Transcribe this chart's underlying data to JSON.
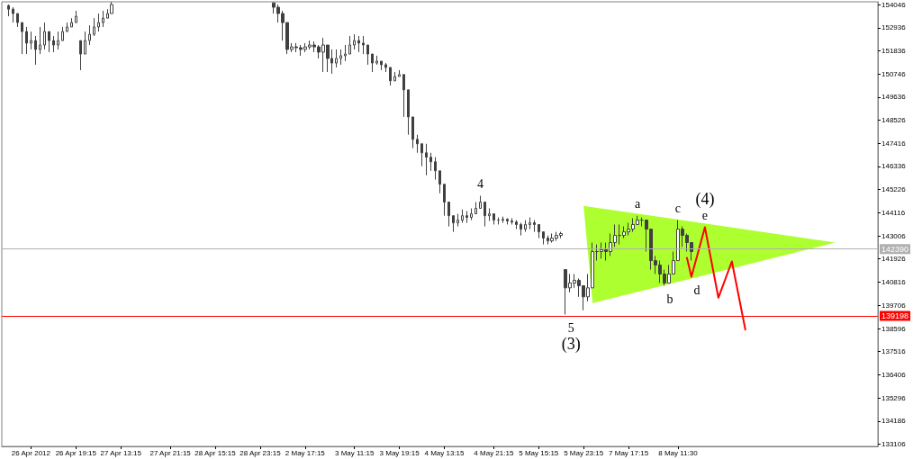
{
  "chart_data": {
    "type": "candlestick",
    "categories": [
      null,
      null,
      null,
      null,
      null,
      null,
      "26 Apr 2012",
      null,
      null,
      null,
      null,
      null,
      null,
      null,
      null,
      null,
      "26 Apr 19:15",
      null,
      null,
      null,
      null,
      null,
      null,
      null,
      null,
      null,
      "27 Apr 13:15",
      null,
      null,
      null,
      null,
      null,
      null,
      null,
      null,
      null,
      null,
      "27 Apr 21:15",
      null,
      null,
      null,
      null,
      null,
      null,
      null,
      null,
      null,
      "28 Apr 15:15",
      null,
      null,
      null,
      null,
      null,
      null,
      null,
      null,
      null,
      "28 Apr 23:15",
      null,
      null,
      null,
      null,
      null,
      null,
      null,
      null,
      null,
      "2 May 17:15",
      null,
      null,
      null,
      null,
      null,
      null,
      null,
      null,
      null,
      null,
      "3 May 11:15",
      null,
      null,
      null,
      null,
      null,
      null,
      null,
      null,
      null,
      "3 May 19:15",
      null,
      null,
      null,
      null,
      null,
      null,
      null,
      null,
      null,
      "4 May 13:15",
      null,
      null,
      null,
      null,
      null,
      null,
      null,
      null,
      null,
      null,
      "4 May 21:15",
      null,
      null,
      null,
      null,
      null,
      null,
      null,
      null,
      null,
      "5 May 15:15",
      null,
      null,
      null,
      null,
      null,
      null,
      null,
      null,
      null,
      "5 May 23:15",
      null,
      null,
      null,
      null,
      null,
      null,
      null,
      null,
      null,
      "7 May 17:15",
      null,
      null,
      null,
      null,
      null,
      null,
      null,
      null,
      null,
      null,
      "8 May 11:30",
      null,
      null,
      null,
      null,
      null,
      null,
      null,
      null,
      null,
      null,
      null,
      null,
      null,
      null,
      null,
      null,
      null,
      null,
      null,
      null,
      null,
      null,
      null,
      null,
      null,
      null,
      null,
      null,
      null,
      null,
      null,
      null,
      null,
      null,
      null,
      null,
      null,
      null,
      null,
      null,
      null,
      null,
      null,
      null
    ],
    "ylim": [
      132980,
      154180
    ],
    "yticks": [
      133106,
      134186,
      135296,
      136406,
      137516,
      138596,
      139706,
      140816,
      141926,
      143006,
      144116,
      145226,
      146336,
      147416,
      148526,
      149636,
      150746,
      151836,
      152936,
      154046
    ],
    "grid": false,
    "series": [
      {
        "color": "#404040",
        "ohlc": [
          null,
          [
            154000,
            154050,
            153490,
            153830
          ],
          [
            153830,
            153920,
            153190,
            153620
          ],
          [
            153620,
            153620,
            152980,
            153190
          ],
          [
            153190,
            153190,
            151690,
            152760
          ],
          [
            152760,
            152980,
            151690,
            152210
          ],
          [
            152210,
            152760,
            151910,
            152330
          ],
          [
            152330,
            152550,
            151180,
            151910
          ],
          [
            151910,
            152980,
            151690,
            152120
          ],
          [
            152120,
            153190,
            151910,
            152760
          ],
          [
            152760,
            152760,
            151780,
            152330
          ],
          [
            152330,
            152550,
            151780,
            152120
          ],
          [
            152120,
            152760,
            151910,
            152330
          ],
          [
            152330,
            152980,
            152330,
            152760
          ],
          [
            152760,
            153190,
            152760,
            152980
          ],
          [
            152980,
            153400,
            152980,
            153190
          ],
          [
            153190,
            153750,
            153190,
            153490
          ],
          [
            152330,
            152330,
            150920,
            151690
          ],
          [
            151690,
            152760,
            151690,
            152330
          ],
          [
            152330,
            153060,
            152120,
            152630
          ],
          [
            152630,
            153400,
            152550,
            152980
          ],
          [
            152980,
            153620,
            152760,
            153190
          ],
          [
            153190,
            153750,
            152980,
            153400
          ],
          [
            153400,
            153830,
            153400,
            153620
          ],
          [
            153620,
            154170,
            153620,
            154050
          ],
          null,
          null,
          null,
          null,
          null,
          null,
          null,
          null,
          null,
          null,
          null,
          null,
          null,
          null,
          null,
          null,
          null,
          null,
          null,
          null,
          null,
          null,
          null,
          null,
          null,
          null,
          null,
          null,
          null,
          null,
          null,
          null,
          null,
          null,
          null,
          [
            154130,
            154130,
            153620,
            153920
          ],
          [
            153920,
            154050,
            153190,
            153620
          ],
          [
            153620,
            153750,
            152330,
            153190
          ],
          [
            153190,
            153190,
            151690,
            151910
          ],
          [
            151910,
            152210,
            151780,
            152030
          ],
          [
            152030,
            152210,
            151780,
            151990
          ],
          [
            151990,
            152120,
            151610,
            151910
          ],
          [
            151910,
            152210,
            151780,
            152030
          ],
          [
            152030,
            152330,
            151910,
            152120
          ],
          [
            152120,
            152290,
            151780,
            152030
          ],
          [
            152030,
            152120,
            151480,
            151780
          ],
          [
            151780,
            152460,
            150830,
            152120
          ],
          [
            152120,
            152120,
            150830,
            151480
          ],
          [
            151480,
            151910,
            150750,
            151260
          ],
          [
            151260,
            151910,
            151050,
            151480
          ],
          [
            151480,
            151910,
            151180,
            151610
          ],
          [
            151610,
            152120,
            151350,
            151690
          ],
          [
            151690,
            152550,
            151690,
            152120
          ],
          [
            152120,
            152630,
            151910,
            152330
          ],
          [
            152330,
            152550,
            151780,
            152210
          ],
          [
            152210,
            152550,
            151690,
            152120
          ],
          [
            152120,
            152120,
            151180,
            151690
          ],
          [
            151690,
            151690,
            150830,
            151260
          ],
          [
            151260,
            151610,
            151180,
            151350
          ],
          [
            151350,
            151350,
            150920,
            151180
          ],
          [
            151180,
            151260,
            150830,
            151050
          ],
          [
            151050,
            151050,
            150190,
            150410
          ],
          [
            150410,
            150830,
            150410,
            150620
          ],
          [
            150620,
            150920,
            150620,
            150710
          ],
          [
            150710,
            150710,
            148690,
            149980
          ],
          [
            149980,
            149980,
            147840,
            148690
          ],
          [
            148690,
            148690,
            147200,
            147620
          ],
          [
            147620,
            147840,
            146980,
            147410
          ],
          [
            147410,
            147410,
            146340,
            146980
          ],
          [
            146980,
            147410,
            145910,
            146770
          ],
          [
            146770,
            146980,
            146120,
            146550
          ],
          [
            146550,
            146770,
            145700,
            146120
          ],
          [
            146120,
            146120,
            145050,
            145480
          ],
          [
            145480,
            145480,
            143980,
            144630
          ],
          [
            144630,
            144630,
            143470,
            143980
          ],
          [
            143980,
            143980,
            143210,
            143640
          ],
          [
            143640,
            144070,
            143470,
            143770
          ],
          [
            143770,
            144280,
            143640,
            143980
          ],
          [
            143980,
            144200,
            143640,
            143900
          ],
          [
            143900,
            144330,
            143770,
            144070
          ],
          [
            144070,
            144630,
            144070,
            144330
          ],
          [
            144330,
            144930,
            144330,
            144630
          ],
          [
            144630,
            144630,
            143470,
            143980
          ],
          [
            143980,
            144330,
            143730,
            144070
          ],
          [
            144070,
            144070,
            143560,
            143770
          ],
          [
            143770,
            143900,
            143560,
            143770
          ],
          [
            143770,
            143940,
            143640,
            143810
          ],
          [
            143810,
            143860,
            143560,
            143730
          ],
          [
            143730,
            143860,
            143560,
            143680
          ],
          [
            143680,
            143770,
            143340,
            143560
          ],
          [
            143560,
            143640,
            143040,
            143340
          ],
          [
            143340,
            143770,
            143210,
            143560
          ],
          [
            143560,
            143900,
            143340,
            143640
          ],
          [
            143640,
            143770,
            143210,
            143560
          ],
          [
            143560,
            143560,
            142910,
            143210
          ],
          [
            143210,
            143210,
            142610,
            142910
          ],
          [
            142910,
            143040,
            142610,
            142780
          ],
          [
            142780,
            143130,
            142700,
            142910
          ],
          [
            142910,
            143210,
            142780,
            143040
          ],
          [
            143040,
            143210,
            142910,
            143130
          ],
          [
            141410,
            141410,
            139270,
            140540
          ],
          [
            140540,
            141200,
            140330,
            140770
          ],
          [
            140770,
            141200,
            140540,
            140900
          ],
          [
            140900,
            140990,
            140110,
            140640
          ],
          [
            140640,
            140640,
            139470,
            140110
          ],
          [
            140110,
            141200,
            139900,
            140540
          ],
          [
            140540,
            142700,
            140540,
            142270
          ],
          [
            142270,
            142610,
            141840,
            142270
          ],
          [
            142270,
            142700,
            141930,
            142360
          ],
          [
            142360,
            142700,
            141840,
            142270
          ],
          [
            142270,
            143130,
            142060,
            142700
          ],
          [
            142700,
            143560,
            142490,
            143040
          ],
          [
            143040,
            143560,
            142610,
            143040
          ],
          [
            143040,
            143470,
            142910,
            143210
          ],
          [
            143210,
            143640,
            143040,
            143340
          ],
          [
            143340,
            143860,
            143210,
            143560
          ],
          [
            143560,
            143980,
            143560,
            143770
          ],
          [
            143770,
            143900,
            143470,
            143770
          ],
          [
            143770,
            143770,
            142270,
            143340
          ],
          [
            143340,
            143340,
            141410,
            141840
          ],
          [
            141840,
            142060,
            141200,
            141630
          ],
          [
            141630,
            141840,
            140770,
            141200
          ],
          [
            141200,
            141410,
            140640,
            140770
          ],
          [
            140770,
            141630,
            140770,
            141200
          ],
          [
            141200,
            142270,
            141200,
            141840
          ],
          [
            141840,
            143770,
            141840,
            143340
          ],
          [
            143340,
            143470,
            142490,
            143040
          ],
          [
            143040,
            143130,
            142270,
            142700
          ],
          [
            142700,
            142700,
            141840,
            142270
          ],
          null,
          null,
          null,
          null,
          null,
          null,
          null,
          null,
          null,
          null,
          null,
          null,
          null,
          null,
          null,
          null,
          null,
          null,
          null,
          null,
          null,
          null,
          null,
          null,
          null,
          null,
          null,
          null,
          null,
          null,
          null,
          null,
          null,
          null,
          null,
          null,
          null,
          null,
          null,
          null,
          null
        ]
      },
      {
        "type": "line",
        "color": "#ff0000",
        "marker": "none",
        "values": [
          null,
          null,
          null,
          null,
          null,
          null,
          null,
          null,
          null,
          null,
          null,
          null,
          null,
          null,
          null,
          null,
          null,
          null,
          null,
          null,
          null,
          null,
          null,
          null,
          null,
          null,
          null,
          null,
          null,
          null,
          null,
          null,
          null,
          null,
          null,
          null,
          null,
          null,
          null,
          null,
          null,
          null,
          null,
          null,
          null,
          null,
          null,
          null,
          null,
          null,
          null,
          null,
          null,
          null,
          null,
          null,
          null,
          null,
          null,
          null,
          null,
          null,
          null,
          null,
          null,
          null,
          null,
          null,
          null,
          null,
          null,
          null,
          null,
          null,
          null,
          null,
          null,
          null,
          null,
          null,
          null,
          null,
          null,
          null,
          null,
          null,
          null,
          null,
          null,
          null,
          null,
          null,
          null,
          null,
          null,
          null,
          null,
          null,
          null,
          null,
          null,
          null,
          null,
          null,
          null,
          null,
          null,
          null,
          null,
          null,
          null,
          null,
          null,
          null,
          null,
          null,
          null,
          null,
          null,
          null,
          null,
          null,
          null,
          null,
          null,
          null,
          null,
          null,
          null,
          null,
          null,
          null,
          null,
          null,
          null,
          null,
          null,
          null,
          null,
          null,
          null,
          null,
          null,
          null,
          null,
          null,
          null,
          null,
          null,
          null,
          null,
          null,
          141970,
          141070,
          null,
          null,
          143430,
          null,
          null,
          140070,
          null,
          null,
          141800,
          null,
          null,
          138550,
          null,
          null,
          null,
          null,
          null,
          null,
          null,
          null,
          null,
          null,
          null,
          null,
          null,
          null,
          null,
          null,
          null,
          null,
          null,
          null,
          null,
          null,
          null,
          null,
          null,
          null,
          null,
          null,
          null
        ]
      },
      {
        "type": "line",
        "color": "#adff2f",
        "values": [
          null,
          null,
          null,
          null,
          null,
          null,
          null,
          null,
          null,
          null,
          null,
          null,
          null,
          null,
          null,
          null,
          null,
          null,
          null,
          null,
          null,
          null,
          null,
          null,
          null,
          null,
          null,
          null,
          null,
          null,
          null,
          null,
          null,
          null,
          null,
          null,
          null,
          null,
          null,
          null,
          null,
          null,
          null,
          null,
          null,
          null,
          null,
          null,
          null,
          null,
          null,
          null,
          null,
          null,
          null,
          null,
          null,
          null,
          null,
          null,
          null,
          null,
          null,
          null,
          null,
          null,
          null,
          null,
          null,
          null,
          null,
          null,
          null,
          null,
          null,
          null,
          null,
          null,
          null,
          null,
          null,
          null,
          null,
          null,
          null,
          null,
          null,
          null,
          null,
          null,
          null,
          null,
          null,
          null,
          null,
          null,
          null,
          null,
          null,
          null,
          null,
          null,
          null,
          null,
          null,
          null,
          null,
          null,
          null,
          null,
          null,
          null,
          null,
          null,
          null,
          null,
          null,
          null,
          null,
          null,
          null,
          null,
          null,
          null,
          null,
          null,
          null,
          null,
          null,
          null,
          null,
          null,
          null,
          null,
          null,
          null,
          null,
          null,
          null,
          null,
          null,
          null,
          null,
          null,
          null,
          null,
          null,
          null,
          null,
          null,
          null,
          null,
          null,
          null,
          null,
          null,
          null,
          null,
          null,
          null,
          null,
          null,
          null,
          null,
          null,
          null,
          null,
          null,
          null,
          null,
          null,
          null,
          null,
          null,
          null,
          null,
          null,
          null,
          null,
          null,
          null,
          null,
          null,
          null,
          null,
          null,
          null,
          null,
          null,
          null,
          null,
          null,
          null,
          null,
          null
        ],
        "upper": [
          null,
          null,
          null,
          null,
          null,
          null,
          null,
          null,
          null,
          null,
          null,
          null,
          null,
          null,
          null,
          null,
          null,
          null,
          null,
          null,
          null,
          null,
          null,
          null,
          null,
          null,
          null,
          null,
          null,
          null,
          null,
          null,
          null,
          null,
          null,
          null,
          null,
          null,
          null,
          null,
          null,
          null,
          null,
          null,
          null,
          null,
          null,
          null,
          null,
          null,
          null,
          null,
          null,
          null,
          null,
          null,
          null,
          null,
          null,
          null,
          null,
          null,
          null,
          null,
          null,
          null,
          null,
          null,
          null,
          null,
          null,
          null,
          null,
          null,
          null,
          null,
          null,
          null,
          null,
          null,
          null,
          null,
          null,
          null,
          null,
          null,
          null,
          null,
          null,
          null,
          null,
          null,
          null,
          null,
          null,
          null,
          null,
          null,
          null,
          null,
          null,
          null,
          null,
          null,
          null,
          null,
          null,
          null,
          null,
          null,
          null,
          null,
          null,
          null,
          null,
          null,
          null,
          null,
          null,
          null,
          null,
          null,
          null,
          null,
          null,
          null,
          null,
          null,
          null,
          144450,
          null,
          144390,
          null,
          null,
          null,
          null,
          null,
          null,
          null,
          null,
          null,
          null,
          null,
          null,
          null,
          null,
          null,
          null,
          null,
          null,
          null,
          null,
          null,
          null,
          null,
          null,
          null,
          null,
          null,
          null,
          null,
          null,
          null,
          null,
          null,
          null,
          null,
          null,
          null,
          null,
          null,
          null,
          null,
          null,
          null,
          null,
          null,
          null,
          null,
          null,
          null,
          null,
          null,
          null,
          null,
          142700,
          null,
          null,
          null,
          null,
          null,
          null,
          null,
          null,
          null
        ],
        "lower": [
          null,
          null,
          null,
          null,
          null,
          null,
          null,
          null,
          null,
          null,
          null,
          null,
          null,
          null,
          null,
          null,
          null,
          null,
          null,
          null,
          null,
          null,
          null,
          null,
          null,
          null,
          null,
          null,
          null,
          null,
          null,
          null,
          null,
          null,
          null,
          null,
          null,
          null,
          null,
          null,
          null,
          null,
          null,
          null,
          null,
          null,
          null,
          null,
          null,
          null,
          null,
          null,
          null,
          null,
          null,
          null,
          null,
          null,
          null,
          null,
          null,
          null,
          null,
          null,
          null,
          null,
          null,
          null,
          null,
          null,
          null,
          null,
          null,
          null,
          null,
          null,
          null,
          null,
          null,
          null,
          null,
          null,
          null,
          null,
          null,
          null,
          null,
          null,
          null,
          null,
          null,
          null,
          null,
          null,
          null,
          null,
          null,
          null,
          null,
          null,
          null,
          null,
          null,
          null,
          null,
          null,
          null,
          null,
          null,
          null,
          null,
          null,
          null,
          null,
          null,
          null,
          null,
          null,
          null,
          null,
          null,
          null,
          null,
          null,
          null,
          null,
          null,
          null,
          null,
          144450,
          null,
          139810,
          null,
          null,
          null,
          null,
          null,
          null,
          null,
          null,
          null,
          null,
          null,
          null,
          null,
          null,
          null,
          null,
          null,
          null,
          null,
          null,
          null,
          null,
          null,
          null,
          null,
          null,
          null,
          null,
          null,
          null,
          null,
          null,
          null,
          null,
          null,
          null,
          null,
          null,
          null,
          null,
          null,
          null,
          null,
          null,
          null,
          null,
          null,
          null,
          null,
          null,
          null,
          null,
          null,
          142700,
          null,
          null,
          null,
          null,
          null,
          null,
          null,
          null,
          null
        ]
      }
    ],
    "ref_lines": [
      {
        "axis": "y",
        "value": 142390,
        "label": "142390",
        "color": "#b0b0b0"
      },
      {
        "axis": "y",
        "value": 139198,
        "label": "139198",
        "color": "#ff0000"
      }
    ],
    "annotations": [
      {
        "text": "4",
        "y": 144930
      },
      {
        "text": "5",
        "y": 139270
      },
      {
        "text": "(3)",
        "y": 139270
      },
      {
        "text": "a",
        "y": 143980
      },
      {
        "text": "b",
        "y": 140640
      },
      {
        "text": "c",
        "y": 143770
      },
      {
        "text": "d",
        "y": 141070
      },
      {
        "text": "e",
        "y": 143430
      },
      {
        "text": "(4)",
        "y": 143430
      }
    ]
  }
}
